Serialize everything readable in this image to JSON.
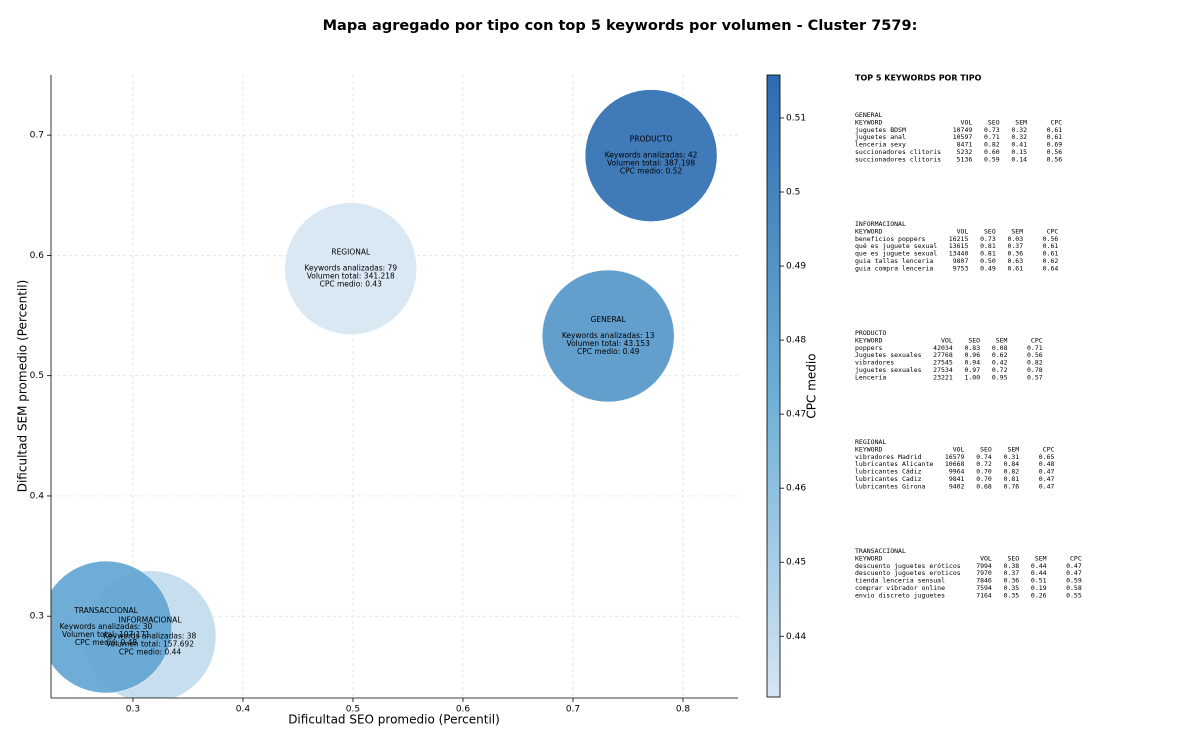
{
  "chart_data": {
    "type": "bubble",
    "title": "Mapa agregado por tipo con top 5 keywords por volumen - Cluster 7579:",
    "x_label": "Dificultad SEO promedio (Percentil)",
    "y_label": "Dificultad SEM promedio (Percentil)",
    "colorbar_label": "CPC medio",
    "xlim": [
      0.2255,
      0.85
    ],
    "xticks": [
      0.3,
      0.4,
      0.5,
      0.6,
      0.7,
      0.8
    ],
    "ylim": [
      0.232,
      0.75
    ],
    "yticks": [
      0.3,
      0.4,
      0.5,
      0.6,
      0.7
    ],
    "clim": [
      0.4318,
      0.5158
    ],
    "cticks": [
      0.44,
      0.45,
      0.46,
      0.47,
      0.48,
      0.49,
      0.5,
      0.51
    ],
    "colormap": [
      "#d6e5f3",
      "#6aaed6",
      "#2b6cb1"
    ],
    "grid": true,
    "bubbles": [
      {
        "name": "GENERAL",
        "x": 0.732,
        "y": 0.533,
        "cpc": 0.49,
        "lines": [
          "Keywords analizadas: 13",
          "Volumen total: 43.153",
          "CPC medio: 0.49"
        ]
      },
      {
        "name": "INFORMACIONAL",
        "x": 0.3155,
        "y": 0.283,
        "cpc": 0.44,
        "lines": [
          "Keywords analizadas: 38",
          "Volumen total: 157.692",
          "CPC medio: 0.44"
        ]
      },
      {
        "name": "PRODUCTO",
        "x": 0.771,
        "y": 0.683,
        "cpc": 0.52,
        "lines": [
          "Keywords analizadas: 42",
          "Volumen total: 387.198",
          "CPC medio: 0.52"
        ]
      },
      {
        "name": "REGIONAL",
        "x": 0.498,
        "y": 0.589,
        "cpc": 0.43,
        "lines": [
          "Keywords analizadas: 79",
          "Volumen total: 341.218",
          "CPC medio: 0.43"
        ]
      },
      {
        "name": "TRANSACCIONAL",
        "x": 0.2755,
        "y": 0.291,
        "cpc": 0.48,
        "lines": [
          "Keywords analizadas: 30",
          "Volumen total: 107.171",
          "CPC medio: 0.48"
        ]
      }
    ]
  },
  "panel": {
    "title": "TOP 5 KEYWORDS POR TIPO",
    "header": [
      "KEYWORD",
      "VOL",
      "SEO",
      "SEM",
      "CPC"
    ],
    "groups": [
      {
        "name": "GENERAL",
        "rows": [
          [
            "juguetes BDSM",
            "10749",
            "0.73",
            "0.32",
            "0.61"
          ],
          [
            "juguetes anal",
            "10597",
            "0.71",
            "0.32",
            "0.61"
          ],
          [
            "lenceria sexy",
            "8471",
            "0.82",
            "0.41",
            "0.69"
          ],
          [
            "succionadores clitoris",
            "5232",
            "0.60",
            "0.15",
            "0.56"
          ],
          [
            "succionadores clitoris",
            "5136",
            "0.59",
            "0.14",
            "0.56"
          ]
        ]
      },
      {
        "name": "INFORMACIONAL",
        "rows": [
          [
            "beneficios poppers",
            "16215",
            "0.73",
            "0.03",
            "0.56"
          ],
          [
            "qué es juguete sexual",
            "13615",
            "0.81",
            "0.37",
            "0.61"
          ],
          [
            "que es juguete sexual",
            "13440",
            "0.81",
            "0.36",
            "0.61"
          ],
          [
            "guia tallas lenceria",
            "9807",
            "0.50",
            "0.63",
            "0.62"
          ],
          [
            "guia compra lenceria",
            "9753",
            "0.49",
            "0.61",
            "0.64"
          ]
        ]
      },
      {
        "name": "PRODUCTO",
        "rows": [
          [
            "poppers",
            "42034",
            "0.83",
            "0.08",
            "0.71"
          ],
          [
            "Juguetes sexuales",
            "27768",
            "0.96",
            "0.62",
            "0.56"
          ],
          [
            "vibradores",
            "27545",
            "0.94",
            "0.42",
            "0.82"
          ],
          [
            "juguetes sexuales",
            "27534",
            "0.97",
            "0.72",
            "0.78"
          ],
          [
            "Lencería",
            "23221",
            "1.00",
            "0.95",
            "0.57"
          ]
        ]
      },
      {
        "name": "REGIONAL",
        "rows": [
          [
            "vibradores Madrid",
            "16579",
            "0.74",
            "0.31",
            "0.65"
          ],
          [
            "lubricantes Alicante",
            "10668",
            "0.72",
            "0.84",
            "0.48"
          ],
          [
            "lubricantes Cádiz",
            "9964",
            "0.70",
            "0.82",
            "0.47"
          ],
          [
            "lubricantes Cadiz",
            "9841",
            "0.70",
            "0.81",
            "0.47"
          ],
          [
            "lubricantes Girona",
            "9402",
            "0.68",
            "0.76",
            "0.47"
          ]
        ]
      },
      {
        "name": "TRANSACCIONAL",
        "rows": [
          [
            "descuento juguetes eróticos",
            "7994",
            "0.38",
            "0.44",
            "0.47"
          ],
          [
            "descuento juguetes eroticos",
            "7970",
            "0.37",
            "0.44",
            "0.47"
          ],
          [
            "tienda lenceria sensual",
            "7846",
            "0.36",
            "0.51",
            "0.59"
          ],
          [
            "comprar vibrador online",
            "7594",
            "0.35",
            "0.19",
            "0.58"
          ],
          [
            "envio discreto juguetes",
            "7164",
            "0.35",
            "0.26",
            "0.55"
          ]
        ]
      }
    ]
  }
}
